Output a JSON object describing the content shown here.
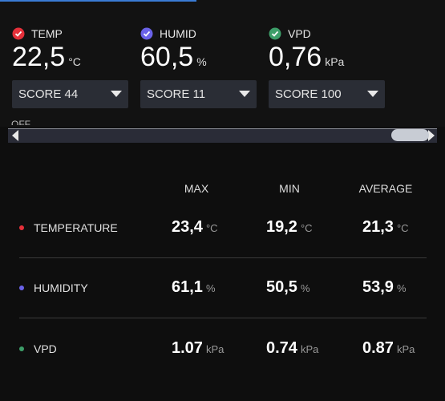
{
  "sensors": [
    {
      "label": "TEMP",
      "value": "22,5",
      "unit": "°C",
      "score": "SCORE 44"
    },
    {
      "label": "HUMID",
      "value": "60,5",
      "unit": "%",
      "score": "SCORE 11"
    },
    {
      "label": "VPD",
      "value": "0,76",
      "unit": "kPa",
      "score": "SCORE 100"
    }
  ],
  "toggle_label": "OFF",
  "table": {
    "headers": [
      "MAX",
      "MIN",
      "AVERAGE"
    ],
    "rows": [
      {
        "label": "TEMPERATURE",
        "cells": [
          {
            "value": "23,4",
            "unit": "°C"
          },
          {
            "value": "19,2",
            "unit": "°C"
          },
          {
            "value": "21,3",
            "unit": "°C"
          }
        ]
      },
      {
        "label": "HUMIDITY",
        "cells": [
          {
            "value": "61,1",
            "unit": "%"
          },
          {
            "value": "50,5",
            "unit": "%"
          },
          {
            "value": "53,9",
            "unit": "%"
          }
        ]
      },
      {
        "label": "VPD",
        "cells": [
          {
            "value": "1.07",
            "unit": "kPa"
          },
          {
            "value": "0.74",
            "unit": "kPa"
          },
          {
            "value": "0.87",
            "unit": "kPa"
          }
        ]
      }
    ]
  }
}
